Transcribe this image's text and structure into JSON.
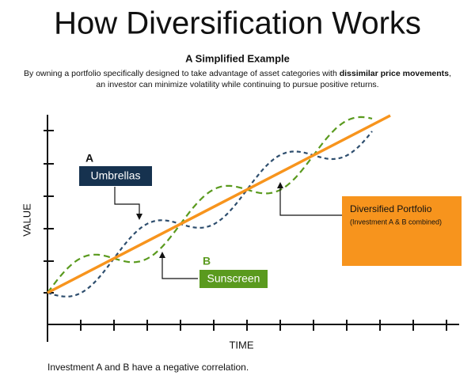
{
  "header": {
    "title": "How Diversification Works",
    "subtitle": "A Simplified Example",
    "description": [
      "By owning a portfolio specifically designed to take advantage of asset categories with ",
      "dissimilar price movements",
      ",",
      "an investor can minimize volatility while continuing to pursue positive returns."
    ]
  },
  "diagram": {
    "y_axis_label": "VALUE",
    "x_axis_label": "TIME",
    "investment_a": {
      "letter": "A",
      "label": "Umbrellas"
    },
    "investment_b": {
      "letter": "B",
      "label": "Sunscreen"
    },
    "portfolio": {
      "label": "Diversified Portfolio",
      "note": "(Investment A & B combined)"
    }
  },
  "footer": "Investment A and B have a negative correlation."
}
